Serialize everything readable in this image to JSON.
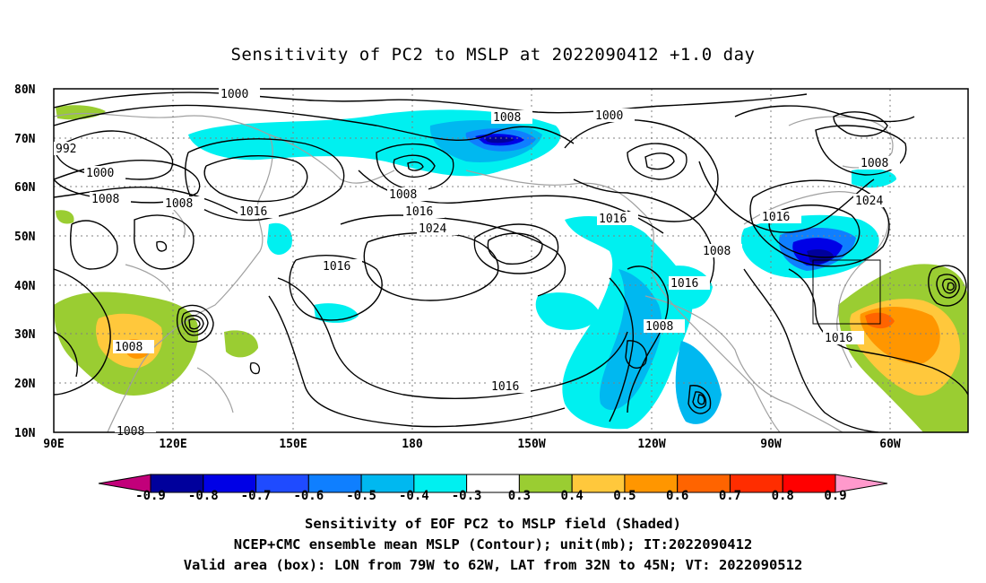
{
  "title": "Sensitivity of PC2 to MSLP at 2022090412 +1.0 day",
  "axes": {
    "lon_labels": [
      "90E",
      "120E",
      "150E",
      "180",
      "150W",
      "120W",
      "90W",
      "60W"
    ],
    "lat_labels": [
      "80N",
      "70N",
      "60N",
      "50N",
      "40N",
      "30N",
      "20N",
      "10N"
    ]
  },
  "contour_labels": [
    "1000",
    "1008",
    "992",
    "1000",
    "1008",
    "1008",
    "1016",
    "1008",
    "1016",
    "1024",
    "1000",
    "1016",
    "1016",
    "1016",
    "1008",
    "1024",
    "1016",
    "1008",
    "1008",
    "1016",
    "1016",
    "1008",
    "1008"
  ],
  "colorbar": {
    "labels": [
      "-0.9",
      "-0.8",
      "-0.7",
      "-0.6",
      "-0.5",
      "-0.4",
      "-0.3",
      "0.3",
      "0.4",
      "0.5",
      "0.6",
      "0.7",
      "0.8",
      "0.9"
    ],
    "colors": [
      "#c2007a",
      "#00009c",
      "#0000e6",
      "#1f4bff",
      "#0f7fff",
      "#00b8f0",
      "#00f0f0",
      "#ffffff",
      "#9acd32",
      "#ffc83c",
      "#ff9600",
      "#ff6400",
      "#ff2d00",
      "#ff0000",
      "#ff99cc"
    ]
  },
  "captions": {
    "line1": "Sensitivity of EOF PC2 to MSLP field (Shaded)",
    "line2": "NCEP+CMC ensemble mean MSLP (Contour); unit(mb); IT:2022090412",
    "line3": "Valid area (box): LON from 79W to 62W, LAT from 32N to 45N; VT: 2022090512"
  }
}
